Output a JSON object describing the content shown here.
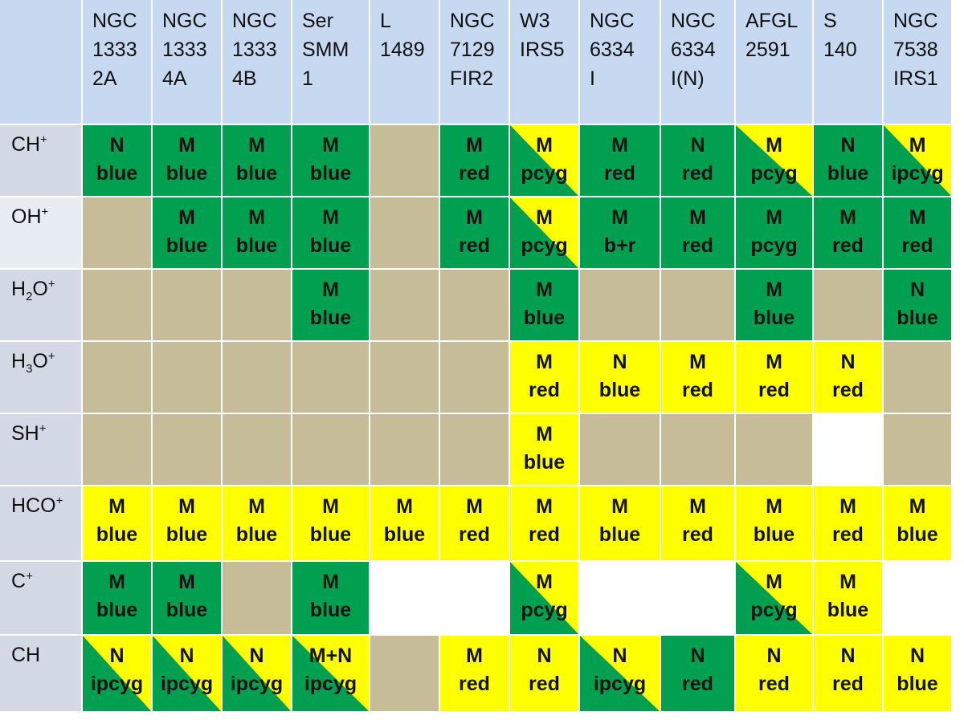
{
  "colors": {
    "green": "#00a050",
    "yellow": "#ffff00",
    "tan": "#c6bd98",
    "header": "#c6d9f0",
    "rowlabel": "#d3d9e4"
  },
  "columns": [
    "NGC\n1333\n2A",
    "NGC\n1333\n4A",
    "NGC\n1333\n4B",
    "Ser\nSMM\n1",
    "L\n1489",
    "NGC\n7129\nFIR2",
    "W3\nIRS5",
    "NGC\n6334\nI",
    "NGC\n6334\nI(N)",
    "AFGL\n2591",
    "S\n140",
    "NGC\n7538\nIRS1"
  ],
  "rows": [
    {
      "label": "CH",
      "sup": "+",
      "sub": "",
      "post": "",
      "cells": [
        {
          "fill": "green",
          "l1": "N",
          "l2": "blue"
        },
        {
          "fill": "green",
          "l1": "M",
          "l2": "blue"
        },
        {
          "fill": "green",
          "l1": "M",
          "l2": "blue"
        },
        {
          "fill": "green",
          "l1": "M",
          "l2": "blue"
        },
        {
          "fill": "tan"
        },
        {
          "fill": "green",
          "l1": "M",
          "l2": "red"
        },
        {
          "fill": "yellow",
          "tri": "green",
          "l1": "M",
          "l2": "pcyg"
        },
        {
          "fill": "green",
          "l1": "M",
          "l2": "red"
        },
        {
          "fill": "green",
          "l1": "N",
          "l2": "red"
        },
        {
          "fill": "yellow",
          "tri": "green",
          "l1": "M",
          "l2": "pcyg"
        },
        {
          "fill": "green",
          "l1": "N",
          "l2": "blue"
        },
        {
          "fill": "yellow",
          "tri": "green",
          "l1": "M",
          "l2": "ipcyg"
        }
      ]
    },
    {
      "label": "OH",
      "sup": "+",
      "sub": "",
      "post": "",
      "light": true,
      "cells": [
        {
          "fill": "tan"
        },
        {
          "fill": "green",
          "l1": "M",
          "l2": "blue"
        },
        {
          "fill": "green",
          "l1": "M",
          "l2": "blue"
        },
        {
          "fill": "green",
          "l1": "M",
          "l2": "blue"
        },
        {
          "fill": "tan"
        },
        {
          "fill": "green",
          "l1": "M",
          "l2": "red"
        },
        {
          "fill": "yellow",
          "tri": "green",
          "l1": "M",
          "l2": "pcyg"
        },
        {
          "fill": "green",
          "l1": "M",
          "l2": "b+r"
        },
        {
          "fill": "green",
          "l1": "M",
          "l2": "red"
        },
        {
          "fill": "green",
          "l1": "M",
          "l2": "pcyg"
        },
        {
          "fill": "green",
          "l1": "M",
          "l2": "red"
        },
        {
          "fill": "green",
          "l1": "M",
          "l2": "red"
        }
      ]
    },
    {
      "label": "H",
      "sub": "2",
      "post": "O",
      "sup": "+",
      "cells": [
        {
          "fill": "tan"
        },
        {
          "fill": "tan"
        },
        {
          "fill": "tan"
        },
        {
          "fill": "green",
          "l1": "M",
          "l2": "blue"
        },
        {
          "fill": "tan"
        },
        {
          "fill": "tan"
        },
        {
          "fill": "green",
          "l1": "M",
          "l2": "blue"
        },
        {
          "fill": "tan"
        },
        {
          "fill": "tan"
        },
        {
          "fill": "green",
          "l1": "M",
          "l2": "blue"
        },
        {
          "fill": "tan"
        },
        {
          "fill": "green",
          "l1": "N",
          "l2": "blue"
        }
      ]
    },
    {
      "label": "H",
      "sub": "3",
      "post": "O",
      "sup": "+",
      "cells": [
        {
          "fill": "tan"
        },
        {
          "fill": "tan"
        },
        {
          "fill": "tan"
        },
        {
          "fill": "tan"
        },
        {
          "fill": "tan"
        },
        {
          "fill": "tan"
        },
        {
          "fill": "yellow",
          "l1": "M",
          "l2": "red"
        },
        {
          "fill": "yellow",
          "l1": "N",
          "l2": "blue"
        },
        {
          "fill": "yellow",
          "l1": "M",
          "l2": "red"
        },
        {
          "fill": "yellow",
          "l1": "M",
          "l2": "red"
        },
        {
          "fill": "yellow",
          "l1": "N",
          "l2": "red"
        },
        {
          "fill": "tan"
        }
      ]
    },
    {
      "label": "SH",
      "sup": "+",
      "sub": "",
      "post": "",
      "cells": [
        {
          "fill": "tan"
        },
        {
          "fill": "tan"
        },
        {
          "fill": "tan"
        },
        {
          "fill": "tan"
        },
        {
          "fill": "tan"
        },
        {
          "fill": "tan"
        },
        {
          "fill": "yellow",
          "l1": "M",
          "l2": "blue"
        },
        {
          "fill": "tan"
        },
        {
          "fill": "tan"
        },
        {
          "fill": "tan"
        },
        {
          "fill": "white"
        },
        {
          "fill": "tan"
        }
      ]
    },
    {
      "label": "HCO",
      "sup": "+",
      "sub": "",
      "post": "",
      "cells": [
        {
          "fill": "yellow",
          "l1": "M",
          "l2": "blue"
        },
        {
          "fill": "yellow",
          "l1": "M",
          "l2": "blue"
        },
        {
          "fill": "yellow",
          "l1": "M",
          "l2": "blue"
        },
        {
          "fill": "yellow",
          "l1": "M",
          "l2": "blue"
        },
        {
          "fill": "yellow",
          "l1": "M",
          "l2": "blue"
        },
        {
          "fill": "yellow",
          "l1": "M",
          "l2": "red"
        },
        {
          "fill": "yellow",
          "l1": "M",
          "l2": "red"
        },
        {
          "fill": "yellow",
          "l1": "M",
          "l2": "blue"
        },
        {
          "fill": "yellow",
          "l1": "M",
          "l2": "red"
        },
        {
          "fill": "yellow",
          "l1": "M",
          "l2": "blue"
        },
        {
          "fill": "yellow",
          "l1": "M",
          "l2": "red"
        },
        {
          "fill": "yellow",
          "l1": "M",
          "l2": "blue"
        }
      ]
    },
    {
      "label": "C",
      "sup": "+",
      "sub": "",
      "post": "",
      "cells": [
        {
          "fill": "green",
          "l1": "M",
          "l2": "blue"
        },
        {
          "fill": "green",
          "l1": "M",
          "l2": "blue"
        },
        {
          "fill": "tan"
        },
        {
          "fill": "green",
          "l1": "M",
          "l2": "blue"
        },
        {
          "fill": "white"
        },
        {
          "fill": "white"
        },
        {
          "fill": "yellow",
          "tri": "green",
          "l1": "M",
          "l2": "pcyg"
        },
        {
          "fill": "white"
        },
        {
          "fill": "white"
        },
        {
          "fill": "yellow",
          "tri": "green",
          "l1": "M",
          "l2": "pcyg"
        },
        {
          "fill": "yellow",
          "l1": "M",
          "l2": "blue"
        },
        {
          "fill": "white"
        }
      ]
    },
    {
      "label": "CH",
      "sup": "",
      "sub": "",
      "post": "",
      "cells": [
        {
          "fill": "yellow",
          "tri": "green",
          "l1": "N",
          "l2": "ipcyg"
        },
        {
          "fill": "yellow",
          "tri": "green",
          "l1": "N",
          "l2": "ipcyg"
        },
        {
          "fill": "yellow",
          "tri": "green",
          "l1": "N",
          "l2": "ipcyg"
        },
        {
          "fill": "yellow",
          "tri": "green",
          "l1": "M+N",
          "l2": "ipcyg"
        },
        {
          "fill": "tan"
        },
        {
          "fill": "yellow",
          "l1": "M",
          "l2": "red"
        },
        {
          "fill": "yellow",
          "l1": "N",
          "l2": "red"
        },
        {
          "fill": "yellow",
          "tri": "green",
          "l1": "N",
          "l2": "ipcyg"
        },
        {
          "fill": "green",
          "l1": "N",
          "l2": "red"
        },
        {
          "fill": "yellow",
          "l1": "N",
          "l2": "red"
        },
        {
          "fill": "yellow",
          "l1": "N",
          "l2": "red"
        },
        {
          "fill": "yellow",
          "l1": "N",
          "l2": "blue"
        }
      ]
    }
  ]
}
